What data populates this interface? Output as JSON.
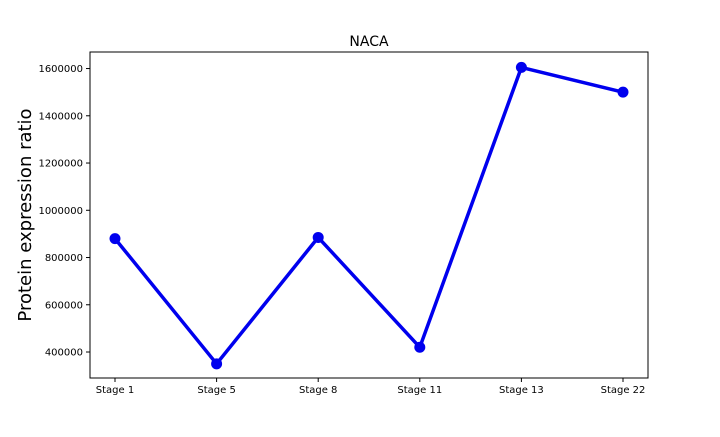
{
  "chart_data": {
    "type": "line",
    "title": "NACA",
    "xlabel": "",
    "ylabel": "Protein expression ratio",
    "categories": [
      "Stage 1",
      "Stage 5",
      "Stage 8",
      "Stage 11",
      "Stage 13",
      "Stage 22"
    ],
    "series": [
      {
        "values": [
          880000,
          350000,
          885000,
          420000,
          1605000,
          1500000
        ]
      }
    ],
    "yticks": [
      400000,
      600000,
      800000,
      1000000,
      1200000,
      1400000,
      1600000
    ],
    "yticklabels": [
      "400000",
      "600000",
      "800000",
      "1000000",
      "1200000",
      "1400000",
      "1600000"
    ],
    "ylim": [
      290000,
      1670000
    ],
    "grid": false,
    "legend": "none",
    "colors": {
      "line": "#0000ee",
      "axes": "#000000",
      "background": "#ffffff"
    }
  }
}
